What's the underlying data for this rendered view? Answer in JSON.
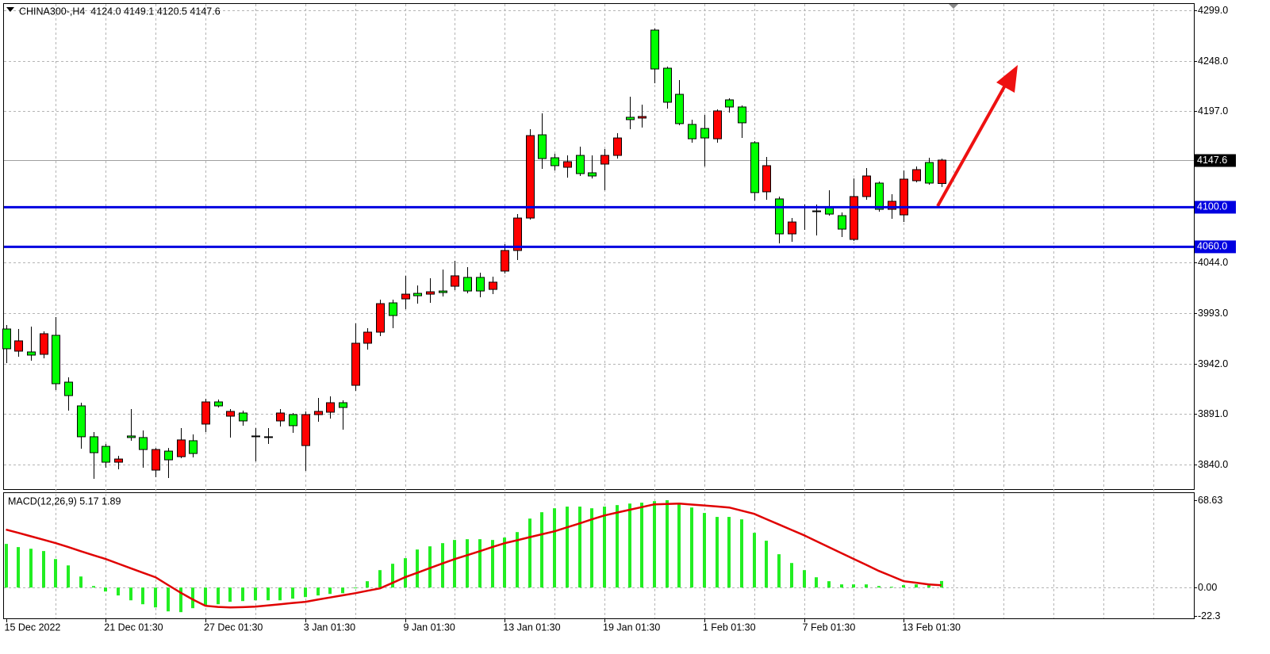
{
  "chart_data": [
    {
      "type": "candlestick",
      "title": "CHINA300-,H4  4124.0 4149.1 4120.5 4147.6",
      "categories": [
        "15 Dec 2022",
        null,
        null,
        null,
        null,
        null,
        null,
        null,
        "21 Dec 01:30",
        null,
        null,
        null,
        null,
        null,
        null,
        null,
        "27 Dec 01:30",
        null,
        null,
        null,
        null,
        null,
        null,
        null,
        "3 Jan 01:30",
        null,
        null,
        null,
        null,
        null,
        null,
        null,
        "9 Jan 01:30",
        null,
        null,
        null,
        null,
        null,
        null,
        null,
        "13 Jan 01:30",
        null,
        null,
        null,
        null,
        null,
        null,
        null,
        "19 Jan 01:30",
        null,
        null,
        null,
        null,
        null,
        null,
        null,
        "1 Feb 01:30",
        null,
        null,
        null,
        null,
        null,
        null,
        null,
        "7 Feb 01:30",
        null,
        null,
        null,
        null,
        null,
        null,
        null,
        "13 Feb 01:30",
        null,
        null,
        null
      ],
      "open": [
        3977.0,
        3954.6,
        3953.8,
        3951.4,
        3970.6,
        3923.3,
        3899.3,
        3868.1,
        3858.4,
        3842.4,
        3868.9,
        3867.3,
        3834.4,
        3853.6,
        3848.0,
        3864.1,
        3880.9,
        3903.3,
        3888.9,
        3892.1,
        3868.9,
        3867.3,
        3884.1,
        3890.5,
        3859.2,
        3890.5,
        3892.9,
        3902.5,
        3920.1,
        3962.6,
        3973.8,
        4003.4,
        4007.4,
        4013.0,
        4012.2,
        4015.4,
        4020.2,
        4029.1,
        4029.1,
        4017.0,
        4035.5,
        4056.3,
        4089.1,
        4173.2,
        4150.0,
        4140.4,
        4152.4,
        4134.8,
        4143.6,
        4152.4,
        4190.9,
        4190.1,
        4279.0,
        4240.5,
        4214.1,
        4183.7,
        4179.6,
        4169.2,
        4208.5,
        4201.3,
        4165.2,
        4115.6,
        4108.4,
        4073.1,
        4099.5,
        4096.3,
        4099.5,
        4091.5,
        4067.5,
        4110.8,
        4124.4,
        4097.9,
        4092.3,
        4126.8,
        4145.2,
        4124.0
      ],
      "high": [
        3981.0,
        3977.0,
        3979.4,
        3974.6,
        3989.0,
        3928.1,
        3902.5,
        3872.9,
        3860.9,
        3848.8,
        3896.1,
        3874.5,
        3856.8,
        3856.8,
        3876.9,
        3870.5,
        3906.5,
        3905.7,
        3896.1,
        3894.5,
        3876.9,
        3876.9,
        3896.1,
        3892.1,
        3893.7,
        3907.3,
        3908.9,
        3904.9,
        3982.6,
        3977.8,
        4006.6,
        4006.6,
        4030.7,
        4021.0,
        4028.3,
        4037.1,
        4045.9,
        4039.5,
        4033.9,
        4029.9,
        4062.7,
        4093.1,
        4178.8,
        4194.9,
        4154.0,
        4152.4,
        4161.2,
        4152.4,
        4158.8,
        4174.8,
        4211.7,
        4203.7,
        4280.6,
        4242.1,
        4228.5,
        4188.5,
        4193.3,
        4198.9,
        4210.1,
        4202.9,
        4166.8,
        4150.8,
        4110.8,
        4089.1,
        4102.8,
        4102.8,
        4117.2,
        4094.7,
        4129.1,
        4139.6,
        4126.0,
        4113.2,
        4137.2,
        4141.2,
        4150.0,
        4149.1
      ],
      "low": [
        3942.6,
        3949.0,
        3945.0,
        3947.4,
        3915.3,
        3894.5,
        3856.0,
        3825.6,
        3836.8,
        3835.2,
        3864.1,
        3836.8,
        3827.2,
        3826.4,
        3846.4,
        3847.2,
        3872.9,
        3897.7,
        3867.3,
        3879.3,
        3843.2,
        3860.9,
        3878.5,
        3872.1,
        3833.6,
        3883.3,
        3886.5,
        3875.3,
        3914.5,
        3956.2,
        3969.8,
        3977.8,
        3997.0,
        4002.6,
        4003.4,
        4009.8,
        4016.2,
        4013.0,
        4009.0,
        4012.2,
        4033.1,
        4046.7,
        4087.5,
        4138.8,
        4137.2,
        4129.9,
        4131.6,
        4129.1,
        4117.2,
        4149.2,
        4178.8,
        4180.5,
        4225.3,
        4199.7,
        4182.9,
        4165.2,
        4141.2,
        4165.2,
        4195.7,
        4170.0,
        4106.8,
        4107.6,
        4063.5,
        4065.1,
        4077.1,
        4071.5,
        4091.5,
        4069.9,
        4065.9,
        4107.6,
        4095.5,
        4088.3,
        4085.1,
        4125.2,
        4122.8,
        4120.5
      ],
      "close": [
        3957.0,
        3965.0,
        3950.6,
        3972.2,
        3921.7,
        3909.7,
        3868.1,
        3852.0,
        3842.4,
        3845.6,
        3867.3,
        3855.2,
        3855.2,
        3844.8,
        3864.9,
        3851.2,
        3903.3,
        3899.3,
        3893.7,
        3884.1,
        3868.1,
        3868.1,
        3892.1,
        3879.3,
        3890.5,
        3893.7,
        3902.5,
        3897.7,
        3962.6,
        3973.8,
        4002.6,
        3990.6,
        4012.2,
        4010.6,
        4014.6,
        4013.8,
        4030.7,
        4015.4,
        4015.4,
        4024.3,
        4056.3,
        4089.1,
        4172.4,
        4149.2,
        4142.0,
        4146.0,
        4134.0,
        4131.6,
        4152.4,
        4170.0,
        4188.5,
        4191.7,
        4239.7,
        4206.1,
        4184.5,
        4169.2,
        4170.0,
        4197.3,
        4201.3,
        4185.3,
        4114.8,
        4142.0,
        4073.1,
        4085.1,
        4100.3,
        4095.5,
        4093.1,
        4077.9,
        4110.8,
        4131.6,
        4097.9,
        4106.0,
        4128.4,
        4138.0,
        4124.4,
        4147.6
      ],
      "up_color": "#ff0000",
      "down_color": "#00ff00",
      "ylim": [
        3815.2,
        4305.4
      ],
      "yticks": [
        {
          "value": 4299,
          "label": "4299.0"
        },
        {
          "value": 4248,
          "label": "4248.0"
        },
        {
          "value": 4197,
          "label": "4197.0"
        },
        {
          "value": 4044,
          "label": "4044.0"
        },
        {
          "value": 3993,
          "label": "3993.0"
        },
        {
          "value": 3942,
          "label": "3942.0"
        },
        {
          "value": 3891,
          "label": "3891.0"
        },
        {
          "value": 3840,
          "label": "3840.0"
        }
      ],
      "levels": [
        {
          "value": 4100,
          "label": "4100.0"
        },
        {
          "value": 4060,
          "label": "4060.0"
        }
      ],
      "level_color": "#0000e0",
      "last_price": 4147.6,
      "grid": true
    },
    {
      "type": "macd",
      "title": "MACD(12,26,9) 5.17 1.89",
      "histogram": {
        "color": "#22ee22",
        "values": [
          34.3,
          31.8,
          30.5,
          28.7,
          22.4,
          17.4,
          8.7,
          1.2,
          -3.1,
          -6.2,
          -10.0,
          -13.1,
          -15.6,
          -18.7,
          -19.3,
          -16.2,
          -14.3,
          -13.1,
          -11.2,
          -10.6,
          -10.0,
          -10.0,
          -10.0,
          -8.7,
          -7.5,
          -6.2,
          -5.0,
          -4.4,
          -0.6,
          5.0,
          13.7,
          18.7,
          23.1,
          29.9,
          32.4,
          34.9,
          37.4,
          38.0,
          38.0,
          37.4,
          39.3,
          43.6,
          54.2,
          59.2,
          62.3,
          63.6,
          63.6,
          62.3,
          63.6,
          64.8,
          66.0,
          66.7,
          67.9,
          68.63,
          65.4,
          62.9,
          58.6,
          55.5,
          55.5,
          53.6,
          43.0,
          36.8,
          26.2,
          19.3,
          13.7,
          8.1,
          5.0,
          2.5,
          2.5,
          2.5,
          1.2,
          0.6,
          1.9,
          2.5,
          3.1,
          5.17
        ]
      },
      "signal": {
        "color": "#e00000",
        "values": [
          45.5,
          43.0,
          40.3,
          37.6,
          34.9,
          31.8,
          28.6,
          25.5,
          22.4,
          18.8,
          15.2,
          11.6,
          8.1,
          2.0,
          -4.0,
          -9.5,
          -14.3,
          -15.2,
          -15.6,
          -15.4,
          -15.0,
          -14.1,
          -13.1,
          -12.1,
          -11.2,
          -9.5,
          -7.8,
          -6.1,
          -4.4,
          -2.5,
          -0.6,
          3.7,
          8.1,
          11.7,
          15.3,
          18.9,
          22.4,
          25.5,
          28.6,
          31.8,
          34.9,
          37.2,
          39.6,
          41.9,
          44.2,
          47.3,
          50.4,
          53.6,
          56.7,
          58.9,
          61.1,
          63.2,
          65.4,
          65.7,
          66.0,
          65.2,
          64.5,
          63.7,
          62.9,
          60.4,
          57.9,
          53.7,
          49.5,
          45.3,
          41.1,
          36.4,
          31.7,
          27.1,
          22.4,
          17.8,
          13.1,
          9.1,
          5.0,
          3.8,
          2.5,
          1.89
        ]
      },
      "ylim": [
        -22.3,
        68.63
      ],
      "yticks": [
        68.63,
        {
          "value": 0,
          "label": "0.00"
        },
        -22.3
      ],
      "grid": true
    }
  ]
}
